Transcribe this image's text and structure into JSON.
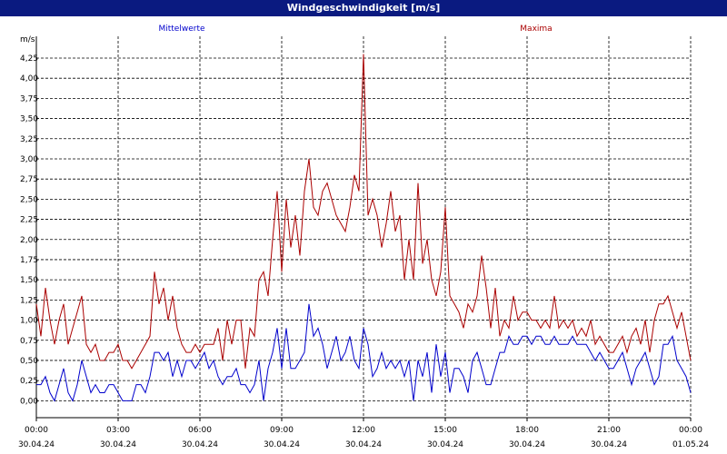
{
  "chart_data": {
    "type": "line",
    "title": "Windgeschwindigkeit [m/s]",
    "y_unit": "m/s",
    "xlim": [
      0,
      1440
    ],
    "xticks": [
      {
        "value": 0,
        "label": "00:00",
        "date": "30.04.24"
      },
      {
        "value": 180,
        "label": "03:00",
        "date": "30.04.24"
      },
      {
        "value": 360,
        "label": "06:00",
        "date": "30.04.24"
      },
      {
        "value": 540,
        "label": "09:00",
        "date": "30.04.24"
      },
      {
        "value": 720,
        "label": "12:00",
        "date": "30.04.24"
      },
      {
        "value": 900,
        "label": "15:00",
        "date": "30.04.24"
      },
      {
        "value": 1080,
        "label": "18:00",
        "date": "30.04.24"
      },
      {
        "value": 1260,
        "label": "21:00",
        "date": "30.04.24"
      },
      {
        "value": 1440,
        "label": "00:00",
        "date": "01.05.24"
      }
    ],
    "ylim": [
      -0.21,
      4.52
    ],
    "yticks": [
      {
        "value": 0,
        "label": "0,00"
      },
      {
        "value": 0.25,
        "label": "0,25"
      },
      {
        "value": 0.5,
        "label": "0,50"
      },
      {
        "value": 0.75,
        "label": "0,75"
      },
      {
        "value": 1,
        "label": "1,00"
      },
      {
        "value": 1.25,
        "label": "1,25"
      },
      {
        "value": 1.5,
        "label": "1,50"
      },
      {
        "value": 1.75,
        "label": "1,75"
      },
      {
        "value": 2,
        "label": "2,00"
      },
      {
        "value": 2.25,
        "label": "2,25"
      },
      {
        "value": 2.5,
        "label": "2,50"
      },
      {
        "value": 2.75,
        "label": "2,75"
      },
      {
        "value": 3,
        "label": "3,00"
      },
      {
        "value": 3.25,
        "label": "3,25"
      },
      {
        "value": 3.5,
        "label": "3,50"
      },
      {
        "value": 3.75,
        "label": "3,75"
      },
      {
        "value": 4,
        "label": "4,00"
      },
      {
        "value": 4.25,
        "label": "4,25"
      }
    ],
    "grid": true,
    "x": [
      0,
      10,
      20,
      30,
      40,
      50,
      60,
      70,
      80,
      90,
      100,
      110,
      120,
      130,
      140,
      150,
      160,
      170,
      180,
      190,
      200,
      210,
      220,
      230,
      240,
      250,
      260,
      270,
      280,
      290,
      300,
      310,
      320,
      330,
      340,
      350,
      360,
      370,
      380,
      390,
      400,
      410,
      420,
      430,
      440,
      450,
      460,
      470,
      480,
      490,
      500,
      510,
      520,
      530,
      540,
      550,
      560,
      570,
      580,
      590,
      600,
      610,
      620,
      630,
      640,
      650,
      660,
      670,
      680,
      690,
      700,
      710,
      720,
      730,
      740,
      750,
      760,
      770,
      780,
      790,
      800,
      810,
      820,
      830,
      840,
      850,
      860,
      870,
      880,
      890,
      900,
      910,
      920,
      930,
      940,
      950,
      960,
      970,
      980,
      990,
      1000,
      1010,
      1020,
      1030,
      1040,
      1050,
      1060,
      1070,
      1080,
      1090,
      1100,
      1110,
      1120,
      1130,
      1140,
      1150,
      1160,
      1170,
      1180,
      1190,
      1200,
      1210,
      1220,
      1230,
      1240,
      1250,
      1260,
      1270,
      1280,
      1290,
      1300,
      1310,
      1320,
      1330,
      1340,
      1350,
      1360,
      1370,
      1380,
      1390,
      1400,
      1410,
      1420,
      1430,
      1440
    ],
    "series": [
      {
        "name": "Mittelwerte",
        "color": "#0000cc",
        "values": [
          0.2,
          0.2,
          0.3,
          0.1,
          0.0,
          0.2,
          0.4,
          0.1,
          0.0,
          0.2,
          0.5,
          0.3,
          0.1,
          0.2,
          0.1,
          0.1,
          0.2,
          0.2,
          0.1,
          0.0,
          0.0,
          0.0,
          0.2,
          0.2,
          0.1,
          0.3,
          0.6,
          0.6,
          0.5,
          0.6,
          0.3,
          0.5,
          0.3,
          0.5,
          0.5,
          0.4,
          0.5,
          0.6,
          0.4,
          0.5,
          0.3,
          0.2,
          0.3,
          0.3,
          0.4,
          0.2,
          0.2,
          0.1,
          0.2,
          0.5,
          0.0,
          0.4,
          0.6,
          0.9,
          0.4,
          0.9,
          0.4,
          0.4,
          0.5,
          0.6,
          1.2,
          0.8,
          0.9,
          0.7,
          0.4,
          0.6,
          0.8,
          0.5,
          0.6,
          0.8,
          0.5,
          0.4,
          0.9,
          0.7,
          0.3,
          0.4,
          0.6,
          0.4,
          0.5,
          0.4,
          0.5,
          0.3,
          0.5,
          0.0,
          0.5,
          0.3,
          0.6,
          0.1,
          0.7,
          0.3,
          0.6,
          0.1,
          0.4,
          0.4,
          0.3,
          0.1,
          0.5,
          0.6,
          0.4,
          0.2,
          0.2,
          0.4,
          0.6,
          0.6,
          0.8,
          0.7,
          0.7,
          0.8,
          0.8,
          0.7,
          0.8,
          0.8,
          0.7,
          0.7,
          0.8,
          0.7,
          0.7,
          0.7,
          0.8,
          0.7,
          0.7,
          0.7,
          0.6,
          0.5,
          0.6,
          0.5,
          0.4,
          0.4,
          0.5,
          0.6,
          0.4,
          0.2,
          0.4,
          0.5,
          0.6,
          0.4,
          0.2,
          0.3,
          0.7,
          0.7,
          0.8,
          0.5,
          0.4,
          0.3,
          0.1
        ]
      },
      {
        "name": "Maxima",
        "color": "#aa0000",
        "values": [
          1.2,
          0.8,
          1.4,
          1.0,
          0.7,
          1.0,
          1.2,
          0.7,
          0.9,
          1.1,
          1.3,
          0.7,
          0.6,
          0.7,
          0.5,
          0.5,
          0.6,
          0.6,
          0.7,
          0.5,
          0.5,
          0.4,
          0.5,
          0.6,
          0.7,
          0.8,
          1.6,
          1.2,
          1.4,
          1.0,
          1.3,
          0.9,
          0.7,
          0.6,
          0.6,
          0.7,
          0.6,
          0.7,
          0.7,
          0.7,
          0.9,
          0.5,
          1.0,
          0.7,
          1.0,
          1.0,
          0.4,
          0.9,
          0.8,
          1.5,
          1.6,
          1.3,
          2.0,
          2.6,
          1.6,
          2.5,
          1.9,
          2.3,
          1.8,
          2.6,
          3.0,
          2.4,
          2.3,
          2.6,
          2.7,
          2.5,
          2.3,
          2.2,
          2.1,
          2.4,
          2.8,
          2.6,
          4.3,
          2.3,
          2.5,
          2.3,
          1.9,
          2.2,
          2.6,
          2.1,
          2.3,
          1.5,
          2.0,
          1.5,
          2.7,
          1.7,
          2.0,
          1.5,
          1.3,
          1.6,
          2.4,
          1.3,
          1.2,
          1.1,
          0.9,
          1.2,
          1.1,
          1.3,
          1.8,
          1.4,
          0.9,
          1.4,
          0.8,
          1.0,
          0.9,
          1.3,
          1.0,
          1.1,
          1.1,
          1.0,
          1.0,
          0.9,
          1.0,
          0.9,
          1.3,
          0.9,
          1.0,
          0.9,
          1.0,
          0.8,
          0.9,
          0.8,
          1.0,
          0.7,
          0.8,
          0.7,
          0.6,
          0.6,
          0.7,
          0.8,
          0.6,
          0.8,
          0.9,
          0.7,
          1.0,
          0.6,
          1.0,
          1.2,
          1.2,
          1.3,
          1.1,
          0.9,
          1.1,
          0.8,
          0.5
        ]
      }
    ]
  }
}
